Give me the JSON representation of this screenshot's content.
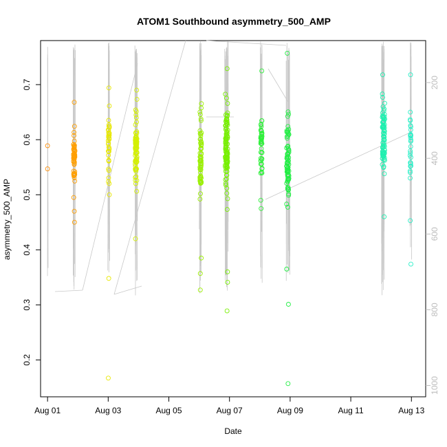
{
  "chart_data": {
    "type": "scatter",
    "title": "ATOM1 Southbound asymmetry_500_AMP",
    "xlabel": "Date",
    "ylabel": "asymmetry_500_AMP",
    "x_ticks": [
      {
        "day": 1,
        "label": "Aug 01"
      },
      {
        "day": 3,
        "label": "Aug 03"
      },
      {
        "day": 5,
        "label": "Aug 05"
      },
      {
        "day": 7,
        "label": "Aug 07"
      },
      {
        "day": 9,
        "label": "Aug 09"
      },
      {
        "day": 11,
        "label": "Aug 11"
      },
      {
        "day": 13,
        "label": "Aug 13"
      }
    ],
    "xlim": [
      0.77,
      13.47
    ],
    "y_ticks": [
      0.2,
      0.3,
      0.4,
      0.5,
      0.6,
      0.7
    ],
    "y_tick_labels": [
      "0.2",
      "0.3",
      "0.4",
      "0.5",
      "0.6",
      "0.7"
    ],
    "ylim": [
      0.133,
      0.78
    ],
    "y2_ticks": [
      200,
      400,
      600,
      800,
      1000
    ],
    "y2_tick_labels": [
      "200",
      "400",
      "600",
      "800",
      "1000"
    ],
    "y2lim": [
      1030,
      89
    ],
    "depth_line_color": "#c8c8c8",
    "clusters": [
      {
        "day": 1.0,
        "spread": 0.01,
        "n": 2,
        "center": 0.57,
        "sd": 0.02,
        "color": "#ff8c00",
        "fixed": [
          0.589,
          0.547
        ]
      },
      {
        "day": 1.88,
        "spread": 0.05,
        "n": 55,
        "center": 0.565,
        "sd": 0.04,
        "color": "#ff9f00",
        "fixed": [
          0.668,
          0.45,
          0.47,
          0.495
        ]
      },
      {
        "day": 3.02,
        "spread": 0.04,
        "n": 40,
        "center": 0.595,
        "sd": 0.045,
        "color": "#e8e800",
        "fixed": [
          0.694,
          0.348,
          0.167,
          0.5
        ]
      },
      {
        "day": 3.92,
        "spread": 0.06,
        "n": 85,
        "center": 0.585,
        "sd": 0.05,
        "color": "#d4f000",
        "fixed": [
          0.69,
          0.42
        ]
      },
      {
        "day": 6.05,
        "spread": 0.05,
        "n": 70,
        "center": 0.57,
        "sd": 0.07,
        "color": "#9bf000",
        "fixed": [
          0.327,
          0.357,
          0.385
        ]
      },
      {
        "day": 6.9,
        "spread": 0.08,
        "n": 110,
        "center": 0.575,
        "sd": 0.07,
        "color": "#77f000",
        "fixed": [
          0.729,
          0.289,
          0.341,
          0.36
        ]
      },
      {
        "day": 8.05,
        "spread": 0.05,
        "n": 45,
        "center": 0.595,
        "sd": 0.05,
        "color": "#2ef03a",
        "fixed": [
          0.725,
          0.475,
          0.49
        ]
      },
      {
        "day": 8.92,
        "spread": 0.08,
        "n": 80,
        "center": 0.56,
        "sd": 0.07,
        "color": "#22ee44",
        "fixed": [
          0.757,
          0.157,
          0.301,
          0.365
        ]
      },
      {
        "day": 12.08,
        "spread": 0.08,
        "n": 85,
        "center": 0.61,
        "sd": 0.05,
        "color": "#1ff0b0",
        "fixed": [
          0.718,
          0.46
        ]
      },
      {
        "day": 12.97,
        "spread": 0.03,
        "n": 30,
        "center": 0.6,
        "sd": 0.055,
        "color": "#2af0c8",
        "fixed": [
          0.718,
          0.374,
          0.453
        ]
      }
    ]
  }
}
